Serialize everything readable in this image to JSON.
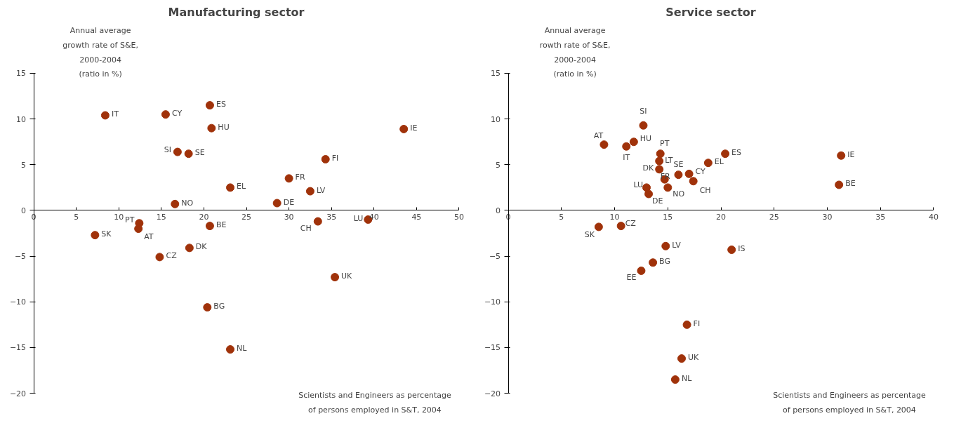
{
  "chart_data": [
    {
      "type": "scatter",
      "title": "Manufacturing sector",
      "ylabel": "Annual average\ngrowth rate of S&E,\n2000-2004\n(ratio in %)",
      "xlabel": "Scientists and Engineers as percentage\nof persons employed in S&T, 2004",
      "color": "#a0320a",
      "marker": "circle",
      "grid": false,
      "xlim": [
        0,
        50
      ],
      "ylim": [
        -20,
        15
      ],
      "xticks": [
        0,
        5,
        10,
        15,
        20,
        25,
        30,
        35,
        40,
        45,
        50
      ],
      "yticks": [
        -20,
        -15,
        -10,
        -5,
        0,
        5,
        10,
        15
      ],
      "x": [
        8.4,
        15.5,
        20.7,
        20.9,
        43.5,
        16.9,
        18.2,
        34.3,
        30.0,
        23.1,
        32.5,
        16.6,
        28.6,
        12.4,
        20.7,
        33.4,
        39.3,
        7.2,
        12.3,
        18.3,
        14.8,
        35.4,
        20.4,
        23.1
      ],
      "values": [
        10.4,
        10.5,
        11.5,
        9.0,
        8.9,
        6.4,
        6.2,
        5.6,
        3.5,
        2.5,
        2.1,
        0.7,
        0.8,
        -1.4,
        -1.7,
        -1.2,
        -1.0,
        -2.7,
        -2.0,
        -4.1,
        -5.1,
        -7.3,
        -10.6,
        -15.2
      ],
      "annotations": [
        {
          "text": "IT",
          "x": 8.4,
          "y": 10.4
        },
        {
          "text": "CY",
          "x": 15.5,
          "y": 10.5
        },
        {
          "text": "ES",
          "x": 20.7,
          "y": 11.5
        },
        {
          "text": "HU",
          "x": 20.9,
          "y": 9.0
        },
        {
          "text": "IE",
          "x": 43.5,
          "y": 8.9
        },
        {
          "text": "SI",
          "x": 16.9,
          "y": 6.4
        },
        {
          "text": "SE",
          "x": 18.2,
          "y": 6.2
        },
        {
          "text": "FI",
          "x": 34.3,
          "y": 5.6
        },
        {
          "text": "FR",
          "x": 30.0,
          "y": 3.5
        },
        {
          "text": "EL",
          "x": 23.1,
          "y": 2.5
        },
        {
          "text": "LV",
          "x": 32.5,
          "y": 2.1
        },
        {
          "text": "NO",
          "x": 16.6,
          "y": 0.7
        },
        {
          "text": "DE",
          "x": 28.6,
          "y": 0.8
        },
        {
          "text": "PT",
          "x": 12.4,
          "y": -1.4
        },
        {
          "text": "BE",
          "x": 20.7,
          "y": -1.7
        },
        {
          "text": "CH",
          "x": 33.4,
          "y": -1.2
        },
        {
          "text": "LU",
          "x": 39.3,
          "y": -1.0
        },
        {
          "text": "SK",
          "x": 7.2,
          "y": -2.7
        },
        {
          "text": "AT",
          "x": 12.3,
          "y": -2.0
        },
        {
          "text": "DK",
          "x": 18.3,
          "y": -4.1
        },
        {
          "text": "CZ",
          "x": 14.8,
          "y": -5.1
        },
        {
          "text": "UK",
          "x": 35.4,
          "y": -7.3
        },
        {
          "text": "BG",
          "x": 20.4,
          "y": -10.6
        },
        {
          "text": "NL",
          "x": 23.1,
          "y": -15.2
        }
      ]
    },
    {
      "type": "scatter",
      "title": "Service sector",
      "ylabel": "Annual average\nrowth rate of S&E,\n2000-2004\n(ratio in %)",
      "xlabel": "Scientists and Engineers as percentage\nof persons employed in S&T, 2004",
      "color": "#a0320a",
      "marker": "circle",
      "grid": false,
      "xlim": [
        0,
        40
      ],
      "ylim": [
        -20,
        15
      ],
      "xticks": [
        0,
        5,
        10,
        15,
        20,
        25,
        30,
        35,
        40
      ],
      "yticks": [
        -20,
        -15,
        -10,
        -5,
        0,
        5,
        10,
        15
      ],
      "x": [
        12.7,
        9.0,
        11.1,
        11.8,
        14.3,
        14.2,
        14.2,
        14.7,
        16.0,
        17.0,
        17.4,
        18.8,
        20.4,
        31.3,
        31.1,
        13.0,
        13.2,
        15.0,
        8.5,
        10.6,
        14.8,
        21.0,
        13.6,
        12.5,
        16.8,
        16.3,
        15.7
      ],
      "values": [
        9.3,
        7.2,
        7.0,
        7.5,
        6.2,
        5.4,
        4.5,
        3.4,
        3.9,
        4.0,
        3.2,
        5.2,
        6.2,
        6.0,
        2.8,
        2.5,
        1.8,
        2.5,
        -1.8,
        -1.7,
        -3.9,
        -4.3,
        -5.7,
        -6.6,
        -12.5,
        -16.2,
        -18.5
      ],
      "annotations": [
        {
          "text": "SI",
          "x": 12.7,
          "y": 9.3
        },
        {
          "text": "AT",
          "x": 9.0,
          "y": 7.2
        },
        {
          "text": "IT",
          "x": 11.1,
          "y": 7.0
        },
        {
          "text": "HU",
          "x": 11.8,
          "y": 7.5
        },
        {
          "text": "PT",
          "x": 14.3,
          "y": 6.2
        },
        {
          "text": "LT",
          "x": 14.2,
          "y": 5.4
        },
        {
          "text": "DK",
          "x": 14.2,
          "y": 4.5
        },
        {
          "text": "FR",
          "x": 14.7,
          "y": 3.4
        },
        {
          "text": "SE",
          "x": 16.0,
          "y": 3.9
        },
        {
          "text": "CY",
          "x": 17.0,
          "y": 4.0
        },
        {
          "text": "CH",
          "x": 17.4,
          "y": 3.2
        },
        {
          "text": "EL",
          "x": 18.8,
          "y": 5.2
        },
        {
          "text": "ES",
          "x": 20.4,
          "y": 6.2
        },
        {
          "text": "IE",
          "x": 31.3,
          "y": 6.0
        },
        {
          "text": "BE",
          "x": 31.1,
          "y": 2.8
        },
        {
          "text": "LU",
          "x": 13.0,
          "y": 2.5
        },
        {
          "text": "DE",
          "x": 13.2,
          "y": 1.8
        },
        {
          "text": "NO",
          "x": 15.0,
          "y": 2.5
        },
        {
          "text": "SK",
          "x": 8.5,
          "y": -1.8
        },
        {
          "text": "CZ",
          "x": 10.6,
          "y": -1.7
        },
        {
          "text": "LV",
          "x": 14.8,
          "y": -3.9
        },
        {
          "text": "IS",
          "x": 21.0,
          "y": -4.3
        },
        {
          "text": "BG",
          "x": 13.6,
          "y": -5.7
        },
        {
          "text": "EE",
          "x": 12.5,
          "y": -6.6
        },
        {
          "text": "FI",
          "x": 16.8,
          "y": -12.5
        },
        {
          "text": "UK",
          "x": 16.3,
          "y": -16.2
        },
        {
          "text": "NL",
          "x": 15.7,
          "y": -18.5
        }
      ]
    }
  ]
}
